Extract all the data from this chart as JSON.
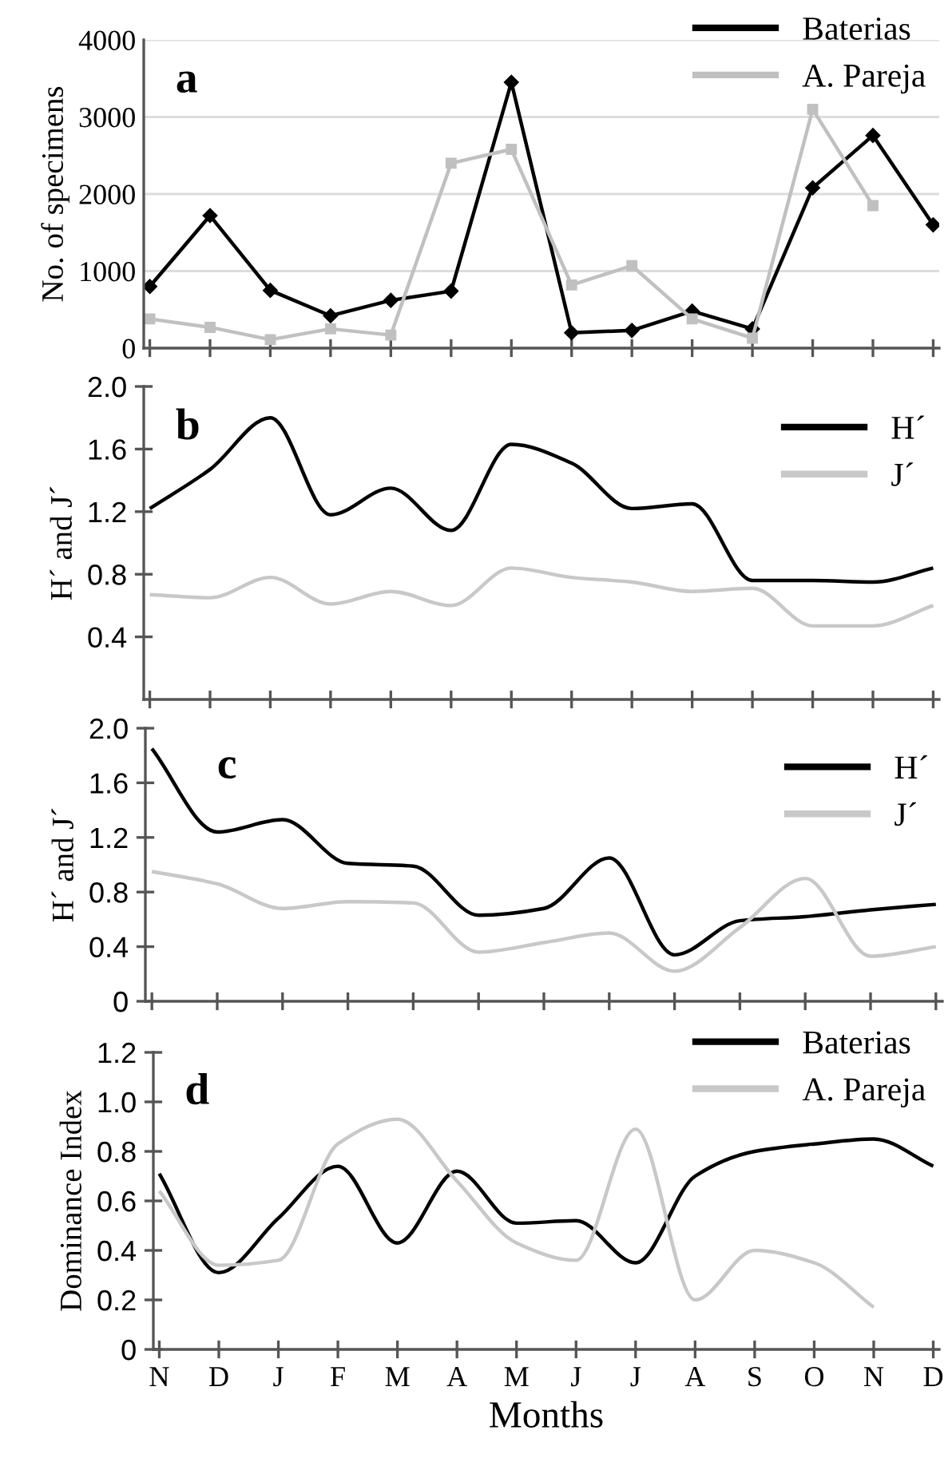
{
  "chart_data": [
    {
      "type": "line",
      "ylabel": "No. of specimens",
      "annotations": [
        "a"
      ],
      "categories": [
        null,
        null,
        null,
        null,
        null,
        null,
        null,
        null,
        null,
        null,
        null,
        null,
        null,
        null
      ],
      "ylim": [
        0,
        4000
      ],
      "yticks": [
        0,
        1000,
        2000,
        3000,
        4000
      ],
      "grid": "y",
      "legend": "top right",
      "line_style": "solid",
      "tick_labels": "y",
      "series": [
        {
          "name": "Baterias",
          "color": "#000000",
          "marker": "diamond",
          "values": [
            800,
            1720,
            750,
            420,
            620,
            740,
            3450,
            200,
            230,
            480,
            250,
            2080,
            2760,
            1600
          ]
        },
        {
          "name": "A. Pareja",
          "color": "#c0c0c0",
          "marker": "square",
          "values": [
            380,
            270,
            110,
            250,
            170,
            2400,
            2580,
            820,
            1070,
            380,
            130,
            3100,
            1850,
            null
          ]
        }
      ]
    },
    {
      "type": "line",
      "ylabel": "H´ and J´",
      "annotations": [
        "b"
      ],
      "categories": [
        null,
        null,
        null,
        null,
        null,
        null,
        null,
        null,
        null,
        null,
        null,
        null,
        null,
        null
      ],
      "ylim": [
        0,
        2.0
      ],
      "yticks": [
        {
          "value": 0.4,
          "label": "0.4"
        },
        {
          "value": 0.8,
          "label": "0.8"
        },
        {
          "value": 1.2,
          "label": "1.2"
        },
        {
          "value": 1.6,
          "label": "1.6"
        },
        {
          "value": 2.0,
          "label": "2.0"
        }
      ],
      "grid": false,
      "legend": "top right",
      "marker": "none",
      "line_style": "solid",
      "tick_labels": "y",
      "series": [
        {
          "name": "H´",
          "color": "#000000",
          "values": [
            1.22,
            1.47,
            1.8,
            1.18,
            1.35,
            1.08,
            1.63,
            1.51,
            1.22,
            1.25,
            0.76,
            0.76,
            0.75,
            0.84
          ]
        },
        {
          "name": "J´",
          "color": "#c8c8c8",
          "values": [
            0.67,
            0.65,
            0.78,
            0.61,
            0.69,
            0.6,
            0.84,
            0.78,
            0.75,
            0.69,
            0.71,
            0.47,
            0.47,
            0.6
          ]
        }
      ]
    },
    {
      "type": "line",
      "ylabel": "H´ and J´",
      "annotations": [
        "c"
      ],
      "categories": [
        null,
        null,
        null,
        null,
        null,
        null,
        null,
        null,
        null,
        null,
        null,
        null,
        null
      ],
      "ylim": [
        0,
        2.0
      ],
      "yticks": [
        {
          "value": 0,
          "label": "0"
        },
        {
          "value": 0.4,
          "label": "0.4"
        },
        {
          "value": 0.8,
          "label": "0.8"
        },
        {
          "value": 1.2,
          "label": "1.2"
        },
        {
          "value": 1.6,
          "label": "1.6"
        },
        {
          "value": 2.0,
          "label": "2.0"
        }
      ],
      "grid": false,
      "legend": "top right",
      "marker": "none",
      "line_style": "solid",
      "tick_labels": "y",
      "series": [
        {
          "name": "H´",
          "color": "#000000",
          "values": [
            1.85,
            1.24,
            1.33,
            1.01,
            0.99,
            0.63,
            0.68,
            1.05,
            0.34,
            0.59,
            0.62,
            0.67,
            0.71
          ]
        },
        {
          "name": "J´",
          "color": "#c8c8c8",
          "values": [
            0.95,
            0.86,
            0.68,
            0.73,
            0.72,
            0.36,
            0.43,
            0.5,
            0.22,
            0.54,
            0.9,
            0.33,
            0.4
          ]
        }
      ]
    },
    {
      "type": "line",
      "xlabel": "Months",
      "ylabel": "Dominance Index",
      "annotations": [
        "d"
      ],
      "categories": [
        "N",
        "D",
        "J",
        "F",
        "M",
        "A",
        "M",
        "J",
        "J",
        "A",
        "S",
        "O",
        "N",
        "D"
      ],
      "ylim": [
        0,
        1.2
      ],
      "yticks": [
        {
          "value": 0,
          "label": "0"
        },
        {
          "value": 0.2,
          "label": "0.2"
        },
        {
          "value": 0.4,
          "label": "0.4"
        },
        {
          "value": 0.6,
          "label": "0.6"
        },
        {
          "value": 0.8,
          "label": "0.8"
        },
        {
          "value": 1.0,
          "label": "1.0"
        },
        {
          "value": 1.2,
          "label": "1.2"
        }
      ],
      "grid": false,
      "legend": "top right",
      "marker": "none",
      "line_style": "solid",
      "series": [
        {
          "name": "Baterias",
          "color": "#000000",
          "values": [
            0.71,
            0.31,
            0.53,
            0.74,
            0.43,
            0.72,
            0.51,
            0.52,
            0.35,
            0.7,
            0.8,
            0.83,
            0.85,
            0.74
          ]
        },
        {
          "name": "A. Pareja",
          "color": "#c8c8c8",
          "values": [
            0.64,
            0.34,
            0.36,
            0.83,
            0.93,
            0.68,
            0.43,
            0.36,
            0.89,
            0.2,
            0.4,
            0.35,
            0.17,
            null
          ]
        }
      ]
    }
  ]
}
